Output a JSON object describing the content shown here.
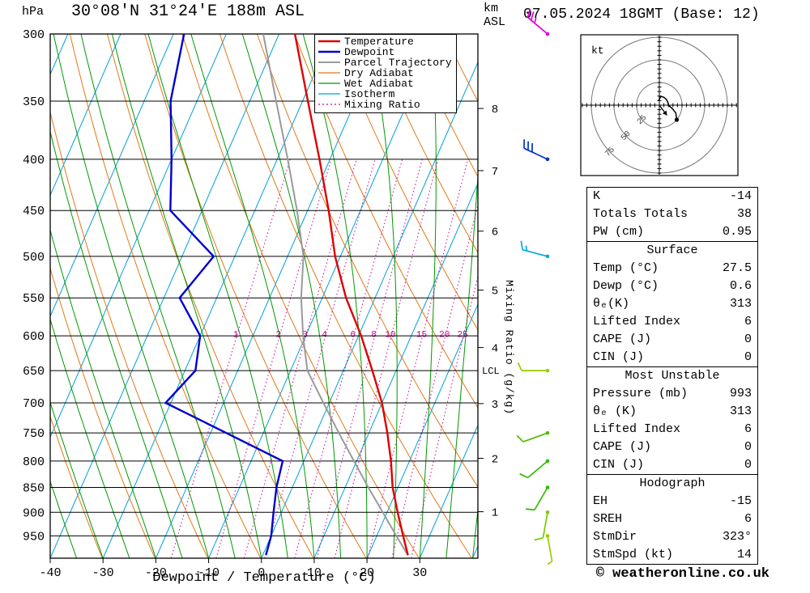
{
  "header": {
    "pressure_unit": "hPa",
    "station_title": "30°08'N 31°24'E 188m ASL",
    "datetime_title": "07.05.2024 18GMT (Base: 12)",
    "km_line1": "km",
    "km_line2": "ASL"
  },
  "axes": {
    "xlabel": "Dewpoint / Temperature (°C)",
    "right_label": "Mixing Ratio (g/kg)",
    "lcl_label": "LCL",
    "pressure_ticks": [
      300,
      350,
      400,
      450,
      500,
      550,
      600,
      650,
      700,
      750,
      800,
      850,
      900,
      950
    ],
    "temp_ticks": [
      -40,
      -30,
      -20,
      -10,
      0,
      10,
      20,
      30
    ],
    "km_ticks": [
      1,
      2,
      3,
      4,
      5,
      6,
      7,
      8
    ]
  },
  "colors": {
    "temperature": "#dd0000",
    "dewpoint": "#0000cc",
    "parcel": "#9a9a9a",
    "dry_adiabat": "#e07818",
    "wet_adiabat": "#009900",
    "isotherm": "#00a0d8",
    "mixing_ratio": "#cc0099",
    "isobar": "#000000"
  },
  "legend": [
    {
      "label": "Temperature",
      "color": "#dd0000",
      "style": "solid",
      "width": 2.4
    },
    {
      "label": "Dewpoint",
      "color": "#0000cc",
      "style": "solid",
      "width": 2.4
    },
    {
      "label": "Parcel Trajectory",
      "color": "#9a9a9a",
      "style": "solid",
      "width": 2
    },
    {
      "label": "Dry Adiabat",
      "color": "#e07818",
      "style": "solid",
      "width": 1.2
    },
    {
      "label": "Wet Adiabat",
      "color": "#009900",
      "style": "solid",
      "width": 1.2
    },
    {
      "label": "Isotherm",
      "color": "#00a0d8",
      "style": "solid",
      "width": 1.2
    },
    {
      "label": "Mixing Ratio",
      "color": "#cc0099",
      "style": "dotted",
      "width": 1.2
    }
  ],
  "chart_data": {
    "type": "skewt-logp-sounding",
    "pressure_range": [
      300,
      1000
    ],
    "temp_range_bottom": [
      -40,
      41
    ],
    "skew": 0.436,
    "isotherm_step": 10,
    "dry_adiabat_step": 10,
    "wet_adiabat_step": 5,
    "mixing_ratio_lines": [
      1,
      2,
      3,
      4,
      6,
      8,
      10,
      15,
      20,
      25
    ],
    "lcl_pressure": 650,
    "temperature": {
      "pressure": [
        993,
        950,
        900,
        850,
        800,
        750,
        700,
        650,
        600,
        550,
        500,
        450,
        400,
        350,
        300
      ],
      "temp": [
        27.5,
        25,
        22,
        19,
        16.5,
        13.5,
        10,
        5.5,
        0.5,
        -5.5,
        -11,
        -16,
        -22,
        -29,
        -37
      ]
    },
    "dewpoint": {
      "pressure": [
        993,
        950,
        900,
        850,
        800,
        750,
        700,
        650,
        600,
        550,
        500,
        450,
        400,
        350,
        300
      ],
      "temp": [
        0.6,
        0,
        -1.5,
        -3,
        -4,
        -17,
        -31,
        -28,
        -30,
        -37,
        -34,
        -46,
        -50,
        -55,
        -58
      ]
    },
    "parcel": {
      "pressure": [
        993,
        950,
        900,
        850,
        800,
        750,
        700,
        650,
        600,
        550,
        500,
        450,
        400,
        350,
        300
      ],
      "temp": [
        27.5,
        23.7,
        19.2,
        14.4,
        9.5,
        4.3,
        -1.1,
        -6.8,
        -10.5,
        -14,
        -17,
        -22,
        -28,
        -35,
        -43
      ]
    },
    "winds": [
      {
        "pressure": 300,
        "dir": 310,
        "speed": 25,
        "color": "#dd00dd"
      },
      {
        "pressure": 400,
        "dir": 295,
        "speed": 30,
        "color": "#0033cc"
      },
      {
        "pressure": 500,
        "dir": 285,
        "speed": 15,
        "color": "#00aadd"
      },
      {
        "pressure": 650,
        "dir": 270,
        "speed": 10,
        "color": "#99cc00"
      },
      {
        "pressure": 750,
        "dir": 250,
        "speed": 10,
        "color": "#55bb00"
      },
      {
        "pressure": 800,
        "dir": 230,
        "speed": 10,
        "color": "#33bb00"
      },
      {
        "pressure": 850,
        "dir": 210,
        "speed": 10,
        "color": "#33bb00"
      },
      {
        "pressure": 900,
        "dir": 190,
        "speed": 10,
        "color": "#77cc00"
      },
      {
        "pressure": 950,
        "dir": 170,
        "speed": 5,
        "color": "#99cc00"
      }
    ]
  },
  "hodograph": {
    "unit_label": "kt",
    "rings": [
      25,
      50,
      75
    ],
    "trace": [
      [
        -0.9,
        4.9
      ],
      [
        1.7,
        9.8
      ],
      [
        5,
        8.7
      ],
      [
        7.7,
        6.4
      ],
      [
        9.4,
        3.4
      ],
      [
        10,
        0
      ],
      [
        14.5,
        -3.9
      ],
      [
        18.1,
        -8.5
      ],
      [
        19.2,
        -16.1
      ]
    ],
    "storm_motion": [
      8.4,
      -11.2
    ]
  },
  "table": {
    "sections": [
      {
        "header": null,
        "rows": [
          [
            "K",
            "-14"
          ],
          [
            "Totals Totals",
            "38"
          ],
          [
            "PW (cm)",
            "0.95"
          ]
        ]
      },
      {
        "header": "Surface",
        "rows": [
          [
            "Temp (°C)",
            "27.5"
          ],
          [
            "Dewp (°C)",
            "0.6"
          ],
          [
            "θₑ(K)",
            "313"
          ],
          [
            "Lifted Index",
            "6"
          ],
          [
            "CAPE (J)",
            "0"
          ],
          [
            "CIN (J)",
            "0"
          ]
        ]
      },
      {
        "header": "Most Unstable",
        "rows": [
          [
            "Pressure (mb)",
            "993"
          ],
          [
            "θₑ (K)",
            "313"
          ],
          [
            "Lifted Index",
            "6"
          ],
          [
            "CAPE (J)",
            "0"
          ],
          [
            "CIN (J)",
            "0"
          ]
        ]
      },
      {
        "header": "Hodograph",
        "rows": [
          [
            "EH",
            "-15"
          ],
          [
            "SREH",
            "6"
          ],
          [
            "StmDir",
            "323°"
          ],
          [
            "StmSpd (kt)",
            "14"
          ]
        ]
      }
    ]
  },
  "footer": {
    "copyright": "© weatheronline.co.uk"
  }
}
